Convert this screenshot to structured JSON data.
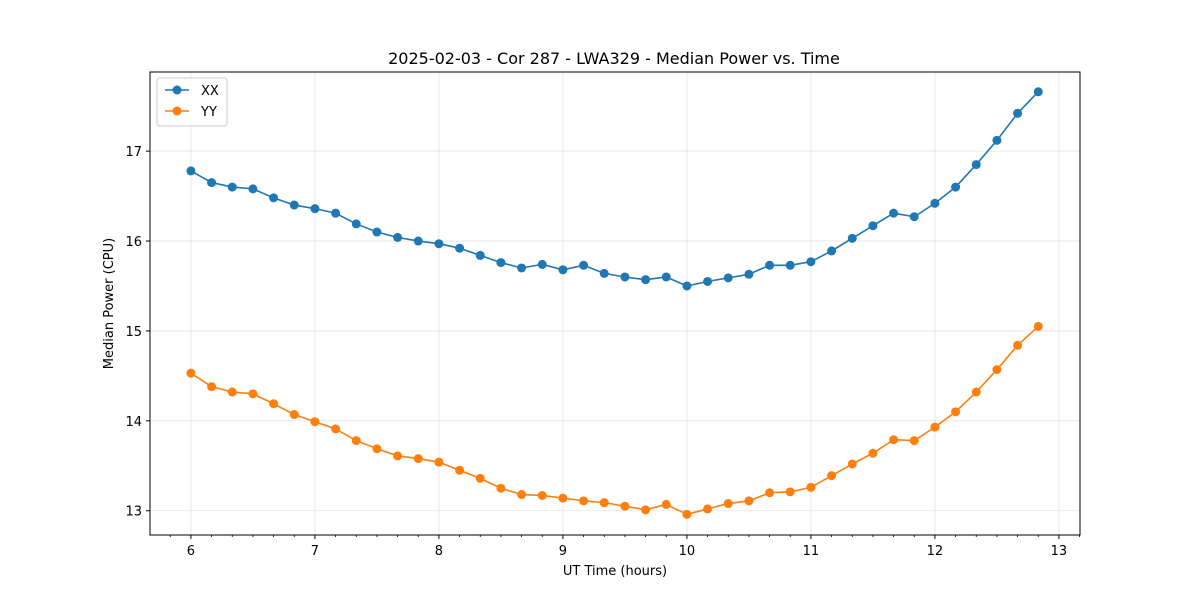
{
  "chart_data": {
    "type": "line",
    "title": "2025-02-03 - Cor 287 - LWA329 - Median Power vs. Time",
    "xlabel": "UT Time (hours)",
    "ylabel": "Median Power (CPU)",
    "xlim": [
      5.67,
      13.17
    ],
    "ylim": [
      12.73,
      17.88
    ],
    "xticks": [
      6,
      7,
      8,
      9,
      10,
      11,
      12,
      13
    ],
    "yticks": [
      13,
      14,
      15,
      16,
      17
    ],
    "grid": true,
    "legend_position": "top-left",
    "x": [
      6.0,
      6.1667,
      6.3333,
      6.5,
      6.6667,
      6.8333,
      7.0,
      7.1667,
      7.3333,
      7.5,
      7.6667,
      7.8333,
      8.0,
      8.1667,
      8.3333,
      8.5,
      8.6667,
      8.8333,
      9.0,
      9.1667,
      9.3333,
      9.5,
      9.6667,
      9.8333,
      10.0,
      10.1667,
      10.3333,
      10.5,
      10.6667,
      10.8333,
      11.0,
      11.1667,
      11.3333,
      11.5,
      11.6667,
      11.8333,
      12.0,
      12.1667,
      12.3333,
      12.5,
      12.6667,
      12.8333
    ],
    "series": [
      {
        "name": "XX",
        "color": "#1f77b4",
        "values": [
          16.78,
          16.65,
          16.6,
          16.58,
          16.48,
          16.4,
          16.36,
          16.31,
          16.19,
          16.1,
          16.04,
          16.0,
          15.97,
          15.92,
          15.84,
          15.76,
          15.7,
          15.74,
          15.68,
          15.73,
          15.64,
          15.6,
          15.57,
          15.6,
          15.5,
          15.55,
          15.59,
          15.63,
          15.73,
          15.73,
          15.77,
          15.89,
          16.03,
          16.17,
          16.31,
          16.27,
          16.42,
          16.6,
          16.85,
          17.12,
          17.42,
          17.66
        ]
      },
      {
        "name": "YY",
        "color": "#ff7f0e",
        "values": [
          14.53,
          14.38,
          14.32,
          14.3,
          14.19,
          14.07,
          13.99,
          13.91,
          13.78,
          13.69,
          13.61,
          13.58,
          13.54,
          13.45,
          13.36,
          13.25,
          13.18,
          13.17,
          13.14,
          13.11,
          13.09,
          13.05,
          13.01,
          13.07,
          12.96,
          13.02,
          13.08,
          13.11,
          13.2,
          13.21,
          13.26,
          13.39,
          13.52,
          13.64,
          13.79,
          13.78,
          13.93,
          14.1,
          14.32,
          14.57,
          14.84,
          15.05
        ]
      }
    ]
  }
}
